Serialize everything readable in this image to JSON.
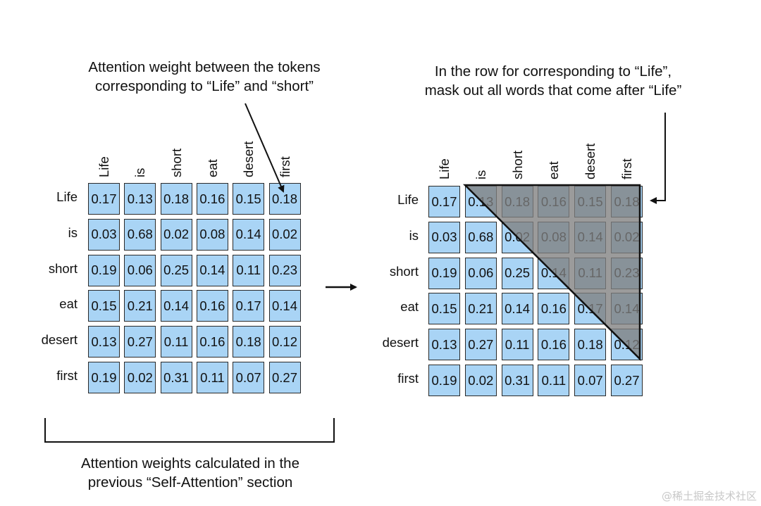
{
  "annotations": {
    "top_left": [
      "Attention weight between the tokens",
      "corresponding to “Life” and “short”"
    ],
    "top_right": [
      "In the row for corresponding to “Life”,",
      "mask out all words that come after “Life”"
    ],
    "bottom": [
      "Attention weights calculated in the",
      "previous “Self-Attention” section"
    ]
  },
  "tokens": [
    "Life",
    "is",
    "short",
    "eat",
    "desert",
    "first"
  ],
  "matrix": [
    [
      "0.17",
      "0.13",
      "0.18",
      "0.16",
      "0.15",
      "0.18"
    ],
    [
      "0.03",
      "0.68",
      "0.02",
      "0.08",
      "0.14",
      "0.02"
    ],
    [
      "0.19",
      "0.06",
      "0.25",
      "0.14",
      "0.11",
      "0.23"
    ],
    [
      "0.15",
      "0.21",
      "0.14",
      "0.16",
      "0.17",
      "0.14"
    ],
    [
      "0.13",
      "0.27",
      "0.11",
      "0.16",
      "0.18",
      "0.12"
    ],
    [
      "0.19",
      "0.02",
      "0.31",
      "0.11",
      "0.07",
      "0.27"
    ]
  ],
  "colors": {
    "cell_fill": "#a9d4f5",
    "cell_border": "#2a2a2a",
    "mask_fill": "#8a8a8a"
  },
  "watermark": "@稀土掘金技术社区"
}
